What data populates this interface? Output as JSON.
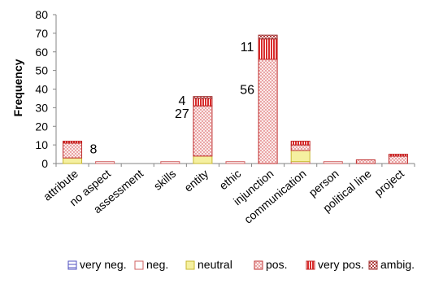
{
  "chart_data": {
    "type": "bar",
    "stacked": true,
    "ylabel": "Frequency",
    "xlabel": "",
    "ylim": [
      0,
      80
    ],
    "yticks": [
      0,
      10,
      20,
      30,
      40,
      50,
      60,
      70,
      80
    ],
    "categories": [
      "attribute",
      "no aspect",
      "assessment",
      "skills",
      "entity",
      "ethic",
      "injunction",
      "communication",
      "person",
      "political line",
      "project"
    ],
    "series": [
      {
        "name": "very neg.",
        "color": "#7070d0",
        "pattern": "hlines",
        "values": [
          0,
          0,
          0,
          0,
          0,
          0,
          0,
          0,
          0,
          0,
          0
        ]
      },
      {
        "name": "neg.",
        "color": "#e8a0a0",
        "pattern": "outline",
        "values": [
          0,
          1,
          0,
          1,
          0,
          1,
          0,
          1,
          1,
          0,
          0
        ]
      },
      {
        "name": "neutral",
        "color": "#f5f0a0",
        "pattern": "fill",
        "values": [
          3,
          0,
          0,
          0,
          4,
          0,
          0,
          6,
          0,
          0,
          0
        ]
      },
      {
        "name": "pos.",
        "color": "#e05050",
        "pattern": "dots",
        "values": [
          8,
          0,
          0,
          0,
          27,
          0,
          56,
          3,
          0,
          2,
          4
        ]
      },
      {
        "name": "very pos.",
        "color": "#e03030",
        "pattern": "vlines",
        "values": [
          1,
          0,
          0,
          0,
          4,
          0,
          11,
          2,
          0,
          0,
          1
        ]
      },
      {
        "name": "ambig.",
        "color": "#c04040",
        "pattern": "checker",
        "values": [
          0,
          0,
          0,
          0,
          1,
          0,
          2,
          0,
          0,
          0,
          0
        ]
      }
    ],
    "annotations": [
      {
        "text": "8",
        "category": "attribute",
        "y": 8
      },
      {
        "text": "27",
        "category": "entity",
        "y": 27
      },
      {
        "text": "4",
        "category": "entity",
        "y": 34
      },
      {
        "text": "56",
        "category": "injunction",
        "y": 40
      },
      {
        "text": "11",
        "category": "injunction",
        "y": 63
      }
    ],
    "legend": "bottom",
    "grid": false
  }
}
